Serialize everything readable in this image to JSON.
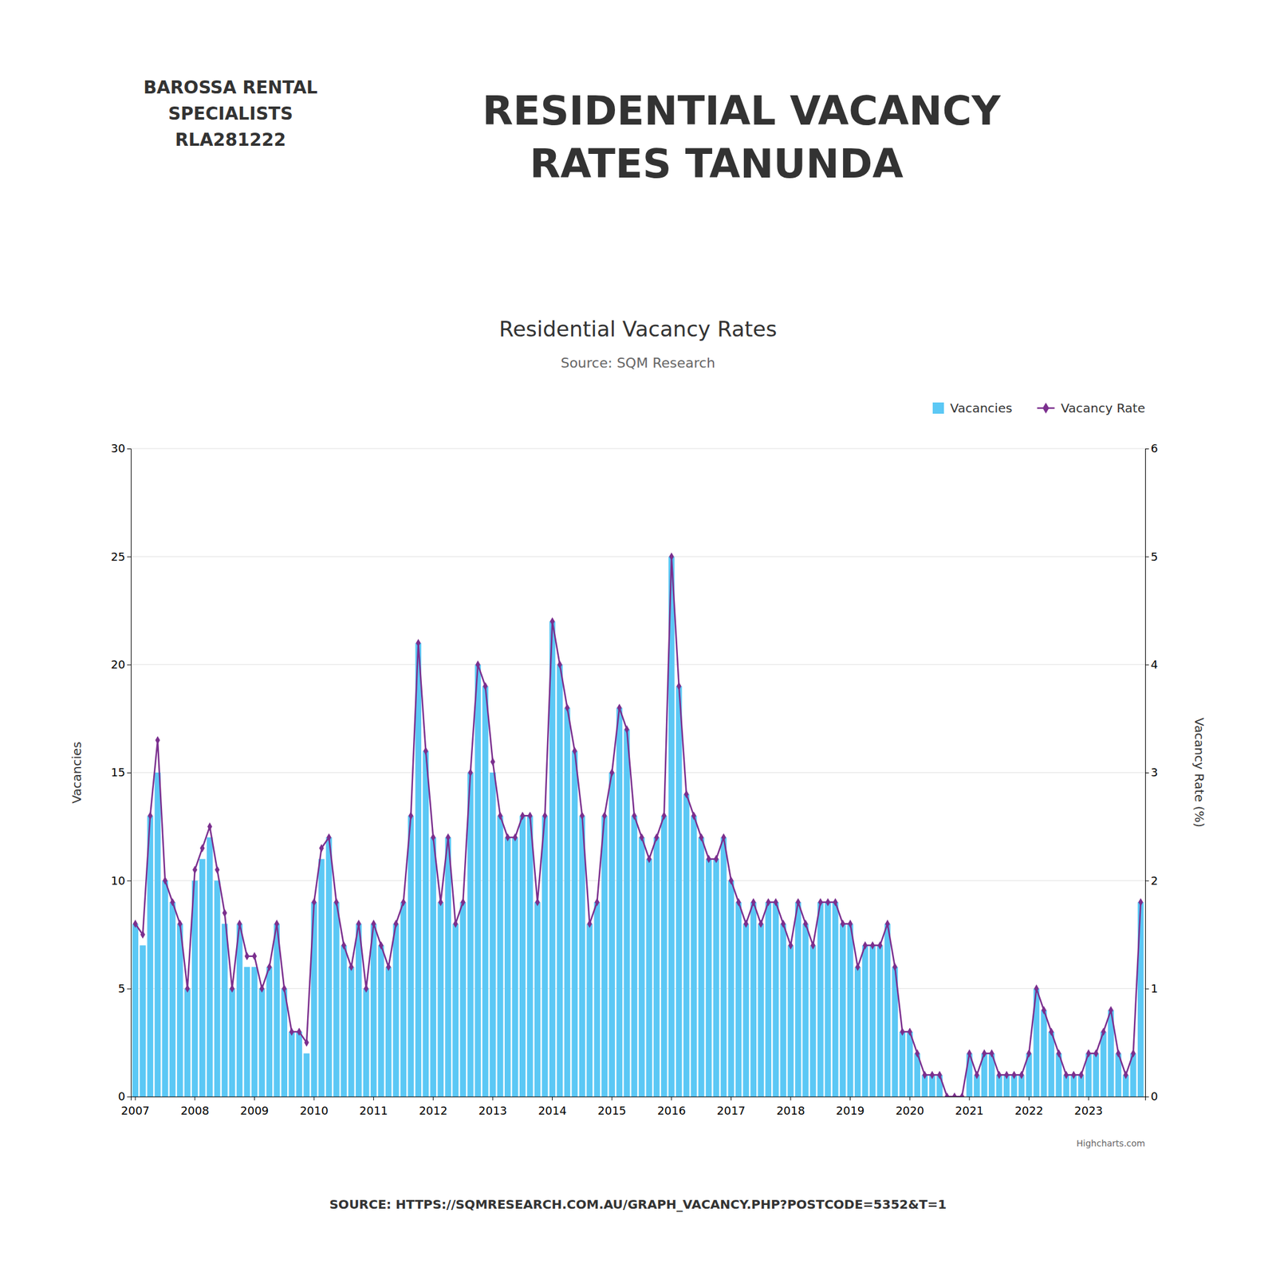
{
  "chart_data": {
    "type": "bar",
    "title": "Residential Vacancy Rates",
    "subtitle": "Source: SQM Research",
    "annotations": [
      "RESIDENTIAL VACANCY",
      "RATES TANUNDA",
      "BAROSSA RENTAL\nSPECIALISTS\nRLA281222",
      "SOURCE: HTTPS://SQMRESEARCH.COM.AU/GRAPH_VACANCY.PHP?POSTCODE=5352&T=1",
      "Highcharts.com"
    ],
    "ylabel": "Vacancies",
    "y2label": "Vacancy Rate (%)",
    "categories": [
      "2007",
      null,
      null,
      null,
      null,
      null,
      null,
      null,
      "2008",
      null,
      null,
      null,
      null,
      null,
      null,
      null,
      "2009",
      null,
      null,
      null,
      null,
      null,
      null,
      null,
      "2010",
      null,
      null,
      null,
      null,
      null,
      null,
      null,
      "2011",
      null,
      null,
      null,
      null,
      null,
      null,
      null,
      "2012",
      null,
      null,
      null,
      null,
      null,
      null,
      null,
      "2013",
      null,
      null,
      null,
      null,
      null,
      null,
      null,
      "2014",
      null,
      null,
      null,
      null,
      null,
      null,
      null,
      "2015",
      null,
      null,
      null,
      null,
      null,
      null,
      null,
      "2016",
      null,
      null,
      null,
      null,
      null,
      null,
      null,
      "2017",
      null,
      null,
      null,
      null,
      null,
      null,
      null,
      "2018",
      null,
      null,
      null,
      null,
      null,
      null,
      null,
      "2019",
      null,
      null,
      null,
      null,
      null,
      null,
      null,
      "2020",
      null,
      null,
      null,
      null,
      null,
      null,
      null,
      "2021",
      null,
      null,
      null,
      null,
      null,
      null,
      null,
      "2022",
      null,
      null,
      null,
      null,
      null,
      null,
      null,
      "2023",
      null,
      null,
      null,
      null,
      null,
      null,
      null
    ],
    "series": [
      {
        "name": "Vacancies",
        "type": "bar",
        "color": "#5bc8f5",
        "values": [
          8,
          7,
          13,
          15,
          10,
          9,
          8,
          5,
          10,
          11,
          12,
          10,
          8,
          5,
          8,
          6,
          6,
          5,
          6,
          8,
          5,
          3,
          3,
          2,
          9,
          11,
          12,
          9,
          7,
          6,
          8,
          5,
          8,
          7,
          6,
          8,
          9,
          13,
          21,
          16,
          12,
          9,
          12,
          8,
          9,
          15,
          20,
          19,
          15,
          13,
          12,
          12,
          13,
          13,
          9,
          13,
          22,
          20,
          18,
          16,
          13,
          8,
          9,
          13,
          15,
          18,
          17,
          13,
          12,
          11,
          12,
          13,
          25,
          19,
          14,
          13,
          12,
          11,
          11,
          12,
          10,
          9,
          8,
          9,
          8,
          9,
          9,
          8,
          7,
          9,
          8,
          7,
          9,
          9,
          9,
          8,
          8,
          6,
          7,
          7,
          7,
          8,
          6,
          3,
          3,
          2,
          1,
          1,
          1,
          0,
          0,
          0,
          2,
          1,
          2,
          2,
          1,
          1,
          1,
          1,
          2,
          5,
          4,
          3,
          2,
          1,
          1,
          1,
          2,
          2,
          3,
          4,
          2,
          1,
          2,
          9
        ]
      },
      {
        "name": "Vacancy Rate",
        "type": "line",
        "color": "#7b2f8e",
        "marker": "diamond",
        "axis": "y2",
        "values": [
          1.6,
          1.5,
          2.6,
          3.3,
          2.0,
          1.8,
          1.6,
          1.0,
          2.1,
          2.3,
          2.5,
          2.1,
          1.7,
          1.0,
          1.6,
          1.3,
          1.3,
          1.0,
          1.2,
          1.6,
          1.0,
          0.6,
          0.6,
          0.5,
          1.8,
          2.3,
          2.4,
          1.8,
          1.4,
          1.2,
          1.6,
          1.0,
          1.6,
          1.4,
          1.2,
          1.6,
          1.8,
          2.6,
          4.2,
          3.2,
          2.4,
          1.8,
          2.4,
          1.6,
          1.8,
          3.0,
          4.0,
          3.8,
          3.1,
          2.6,
          2.4,
          2.4,
          2.6,
          2.6,
          1.8,
          2.6,
          4.4,
          4.0,
          3.6,
          3.2,
          2.6,
          1.6,
          1.8,
          2.6,
          3.0,
          3.6,
          3.4,
          2.6,
          2.4,
          2.2,
          2.4,
          2.6,
          5.0,
          3.8,
          2.8,
          2.6,
          2.4,
          2.2,
          2.2,
          2.4,
          2.0,
          1.8,
          1.6,
          1.8,
          1.6,
          1.8,
          1.8,
          1.6,
          1.4,
          1.8,
          1.6,
          1.4,
          1.8,
          1.8,
          1.8,
          1.6,
          1.6,
          1.2,
          1.4,
          1.4,
          1.4,
          1.6,
          1.2,
          0.6,
          0.6,
          0.4,
          0.2,
          0.2,
          0.2,
          0.0,
          0.0,
          0.0,
          0.4,
          0.2,
          0.4,
          0.4,
          0.2,
          0.2,
          0.2,
          0.2,
          0.4,
          1.0,
          0.8,
          0.6,
          0.4,
          0.2,
          0.2,
          0.2,
          0.4,
          0.4,
          0.6,
          0.8,
          0.4,
          0.2,
          0.4,
          1.8
        ]
      }
    ],
    "ylim": [
      0,
      30
    ],
    "yticks": [
      0,
      5,
      10,
      15,
      20,
      25,
      30
    ],
    "y2lim": [
      0,
      6
    ],
    "y2ticks": [
      0,
      1,
      2,
      3,
      4,
      5,
      6
    ],
    "grid": true,
    "legend": "upper right"
  }
}
